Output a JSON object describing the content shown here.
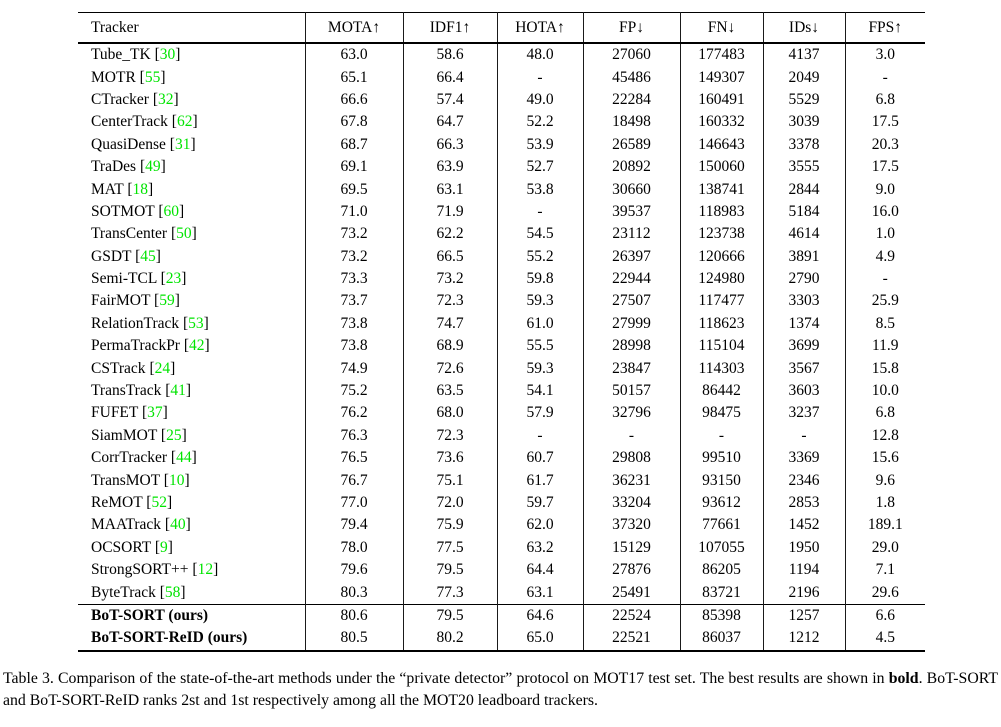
{
  "colors": {
    "citation_link": "#00e400",
    "rule": "#000000",
    "background": "#ffffff"
  },
  "table": {
    "columns": [
      "Tracker",
      "MOTA↑",
      "IDF1↑",
      "HOTA↑",
      "FP↓",
      "FN↓",
      "IDs↓",
      "FPS↑"
    ],
    "ours_start_index": 25,
    "rows": [
      {
        "name": "Tube_TK",
        "cite": "30",
        "bold_name": false,
        "values": [
          "63.0",
          "58.6",
          "48.0",
          "27060",
          "177483",
          "4137",
          "3.0"
        ],
        "bold_cols": []
      },
      {
        "name": "MOTR",
        "cite": "55",
        "bold_name": false,
        "values": [
          "65.1",
          "66.4",
          "-",
          "45486",
          "149307",
          "2049",
          "-"
        ],
        "bold_cols": []
      },
      {
        "name": "CTracker",
        "cite": "32",
        "bold_name": false,
        "values": [
          "66.6",
          "57.4",
          "49.0",
          "22284",
          "160491",
          "5529",
          "6.8"
        ],
        "bold_cols": []
      },
      {
        "name": "CenterTrack",
        "cite": "62",
        "bold_name": false,
        "values": [
          "67.8",
          "64.7",
          "52.2",
          "18498",
          "160332",
          "3039",
          "17.5"
        ],
        "bold_cols": []
      },
      {
        "name": "QuasiDense",
        "cite": "31",
        "bold_name": false,
        "values": [
          "68.7",
          "66.3",
          "53.9",
          "26589",
          "146643",
          "3378",
          "20.3"
        ],
        "bold_cols": []
      },
      {
        "name": "TraDes",
        "cite": "49",
        "bold_name": false,
        "values": [
          "69.1",
          "63.9",
          "52.7",
          "20892",
          "150060",
          "3555",
          "17.5"
        ],
        "bold_cols": []
      },
      {
        "name": "MAT",
        "cite": "18",
        "bold_name": false,
        "values": [
          "69.5",
          "63.1",
          "53.8",
          "30660",
          "138741",
          "2844",
          "9.0"
        ],
        "bold_cols": []
      },
      {
        "name": "SOTMOT",
        "cite": "60",
        "bold_name": false,
        "values": [
          "71.0",
          "71.9",
          "-",
          "39537",
          "118983",
          "5184",
          "16.0"
        ],
        "bold_cols": []
      },
      {
        "name": "TransCenter",
        "cite": "50",
        "bold_name": false,
        "values": [
          "73.2",
          "62.2",
          "54.5",
          "23112",
          "123738",
          "4614",
          "1.0"
        ],
        "bold_cols": []
      },
      {
        "name": "GSDT",
        "cite": "45",
        "bold_name": false,
        "values": [
          "73.2",
          "66.5",
          "55.2",
          "26397",
          "120666",
          "3891",
          "4.9"
        ],
        "bold_cols": []
      },
      {
        "name": "Semi-TCL",
        "cite": "23",
        "bold_name": false,
        "values": [
          "73.3",
          "73.2",
          "59.8",
          "22944",
          "124980",
          "2790",
          "-"
        ],
        "bold_cols": []
      },
      {
        "name": "FairMOT",
        "cite": "59",
        "bold_name": false,
        "values": [
          "73.7",
          "72.3",
          "59.3",
          "27507",
          "117477",
          "3303",
          "25.9"
        ],
        "bold_cols": []
      },
      {
        "name": "RelationTrack",
        "cite": "53",
        "bold_name": false,
        "values": [
          "73.8",
          "74.7",
          "61.0",
          "27999",
          "118623",
          "1374",
          "8.5"
        ],
        "bold_cols": []
      },
      {
        "name": "PermaTrackPr",
        "cite": "42",
        "bold_name": false,
        "values": [
          "73.8",
          "68.9",
          "55.5",
          "28998",
          "115104",
          "3699",
          "11.9"
        ],
        "bold_cols": []
      },
      {
        "name": "CSTrack",
        "cite": "24",
        "bold_name": false,
        "values": [
          "74.9",
          "72.6",
          "59.3",
          "23847",
          "114303",
          "3567",
          "15.8"
        ],
        "bold_cols": []
      },
      {
        "name": "TransTrack",
        "cite": "41",
        "bold_name": false,
        "values": [
          "75.2",
          "63.5",
          "54.1",
          "50157",
          "86442",
          "3603",
          "10.0"
        ],
        "bold_cols": []
      },
      {
        "name": "FUFET",
        "cite": "37",
        "bold_name": false,
        "values": [
          "76.2",
          "68.0",
          "57.9",
          "32796",
          "98475",
          "3237",
          "6.8"
        ],
        "bold_cols": []
      },
      {
        "name": "SiamMOT",
        "cite": "25",
        "bold_name": false,
        "values": [
          "76.3",
          "72.3",
          "-",
          "-",
          "-",
          "-",
          "12.8"
        ],
        "bold_cols": []
      },
      {
        "name": "CorrTracker",
        "cite": "44",
        "bold_name": false,
        "values": [
          "76.5",
          "73.6",
          "60.7",
          "29808",
          "99510",
          "3369",
          "15.6"
        ],
        "bold_cols": []
      },
      {
        "name": "TransMOT",
        "cite": "10",
        "bold_name": false,
        "values": [
          "76.7",
          "75.1",
          "61.7",
          "36231",
          "93150",
          "2346",
          "9.6"
        ],
        "bold_cols": []
      },
      {
        "name": "ReMOT",
        "cite": "52",
        "bold_name": false,
        "values": [
          "77.0",
          "72.0",
          "59.7",
          "33204",
          "93612",
          "2853",
          "1.8"
        ],
        "bold_cols": []
      },
      {
        "name": "MAATrack",
        "cite": "40",
        "bold_name": false,
        "values": [
          "79.4",
          "75.9",
          "62.0",
          "37320",
          "77661",
          "1452",
          "189.1"
        ],
        "bold_cols": [
          6
        ]
      },
      {
        "name": "OCSORT",
        "cite": "9",
        "bold_name": false,
        "values": [
          "78.0",
          "77.5",
          "63.2",
          "15129",
          "107055",
          "1950",
          "29.0"
        ],
        "bold_cols": [
          3
        ]
      },
      {
        "name": "StrongSORT++",
        "cite": "12",
        "bold_name": false,
        "values": [
          "79.6",
          "79.5",
          "64.4",
          "27876",
          "86205",
          "1194",
          "7.1"
        ],
        "bold_cols": [
          5
        ]
      },
      {
        "name": "ByteTrack",
        "cite": "58",
        "bold_name": false,
        "values": [
          "80.3",
          "77.3",
          "63.1",
          "25491",
          "83721",
          "2196",
          "29.6"
        ],
        "bold_cols": [
          4
        ]
      },
      {
        "name": "BoT-SORT (ours)",
        "cite": null,
        "bold_name": true,
        "values": [
          "80.6",
          "79.5",
          "64.6",
          "22524",
          "85398",
          "1257",
          "6.6"
        ],
        "bold_cols": [
          0
        ]
      },
      {
        "name": "BoT-SORT-ReID (ours)",
        "cite": null,
        "bold_name": true,
        "values": [
          "80.5",
          "80.2",
          "65.0",
          "22521",
          "86037",
          "1212",
          "4.5"
        ],
        "bold_cols": [
          1,
          2
        ]
      }
    ]
  },
  "caption": {
    "part1": "Table 3. Comparison of the state-of-the-art methods under the “private detector” protocol on MOT17 test set. The best results are shown in ",
    "bold_word": "bold",
    "part2": ". BoT-SORT and BoT-SORT-ReID ranks 2st and 1st respectively among all the MOT20 leadboard trackers."
  }
}
